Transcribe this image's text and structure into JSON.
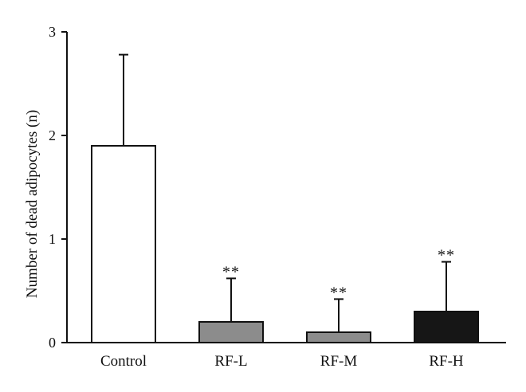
{
  "chart_data": {
    "type": "bar",
    "title": "",
    "xlabel": "",
    "ylabel": "Number of dead adipocytes (n)",
    "ylim": [
      0,
      3
    ],
    "yticks": [
      "0",
      "1",
      "2",
      "3"
    ],
    "grid": false,
    "legend": "none",
    "categories": [
      "Control",
      "RF-L",
      "RF-M",
      "RF-H"
    ],
    "values": [
      1.9,
      0.2,
      0.1,
      0.3
    ],
    "error_upper": [
      0.88,
      0.42,
      0.32,
      0.48
    ],
    "annotations": [
      "",
      "**",
      "**",
      "**"
    ],
    "bar_colors": [
      "#ffffff",
      "#8c8c8c",
      "#8c8c8c",
      "#161616"
    ]
  }
}
